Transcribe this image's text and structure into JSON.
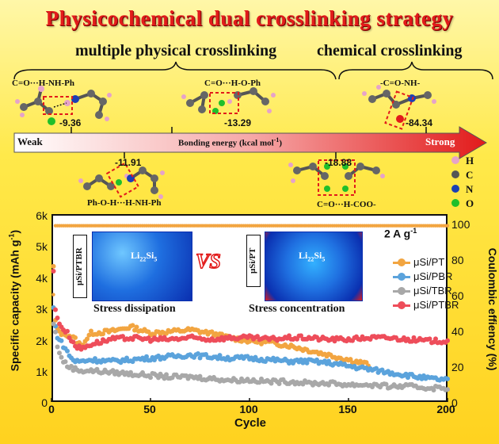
{
  "title": "Physicochemical dual crosslinking strategy",
  "subtitles": {
    "physical": "multiple physical crosslinking",
    "chemical": "chemical crosslinking"
  },
  "bond_labels": {
    "b1": "C=O···H-NH-Ph",
    "b2": "C=O···H-O-Ph",
    "b3": "-C=O-NH-",
    "b4": "Ph-O-H···H-NH-Ph",
    "b5": "C=O···H-COO-"
  },
  "energies": {
    "e1": "-9.36",
    "e2": "-13.29",
    "e3": "-84.34",
    "e4": "-11.91",
    "e5": "-18.88"
  },
  "energy_arrow": {
    "weak": "Weak",
    "label_main": "Bonding energy (kcal mol",
    "label_sup": "-1",
    "label_end": ")",
    "strong": "Strong"
  },
  "atoms": [
    {
      "symbol": "H",
      "color": "#e6a3c9"
    },
    {
      "symbol": "C",
      "color": "#555555"
    },
    {
      "symbol": "N",
      "color": "#1b3fb5"
    },
    {
      "symbol": "O",
      "color": "#1fbf2a"
    }
  ],
  "inset": {
    "left_label": "μSi/PTBR",
    "left_formula": "Li",
    "left_sub1": "22",
    "left_mid": "Si",
    "left_sub2": "5",
    "left_caption": "Stress dissipation",
    "vs": "VS",
    "right_label": "μSi/PT",
    "right_formula": "Li",
    "right_sub1": "22",
    "right_mid": "Si",
    "right_sub2": "5",
    "right_caption": "Stress concentration",
    "current": "2 A g",
    "current_sup": "-1"
  },
  "chart_data": {
    "type": "scatter",
    "xlabel": "Cycle",
    "ylabel": "Specific capacity (mAh g",
    "ylabel_sup": "-1",
    "ylabel_end": ")",
    "y2label": "Coulombic effiency (%)",
    "xlim": [
      0,
      200
    ],
    "ylim": [
      0,
      6000
    ],
    "y2lim": [
      0,
      105
    ],
    "xticks": [
      "0",
      "50",
      "100",
      "150",
      "200"
    ],
    "yticks": [
      "0",
      "1k",
      "2k",
      "3k",
      "4k",
      "5k",
      "6k"
    ],
    "y2ticks": [
      "0",
      "20",
      "40",
      "60",
      "80",
      "100"
    ],
    "series": [
      {
        "name": "μSi/PT",
        "color": "#f2a541",
        "x": [
          1,
          2,
          3,
          5,
          8,
          10,
          12,
          15,
          20,
          30,
          40,
          50,
          60,
          70,
          80,
          90,
          100,
          110,
          120,
          130,
          140,
          150,
          160
        ],
        "y": [
          4300,
          2600,
          2300,
          2200,
          2150,
          2100,
          2000,
          1800,
          2200,
          2250,
          2400,
          2200,
          2250,
          2300,
          2200,
          2050,
          1950,
          1900,
          1800,
          1650,
          1500,
          1350,
          1200
        ]
      },
      {
        "name": "μSi/PBR",
        "color": "#5ba3dc",
        "x": [
          1,
          2,
          3,
          5,
          8,
          10,
          12,
          15,
          20,
          30,
          40,
          50,
          60,
          70,
          80,
          90,
          100,
          110,
          120,
          130,
          140,
          150,
          160,
          170,
          180,
          190,
          200
        ],
        "y": [
          3000,
          2400,
          2100,
          1900,
          1600,
          1400,
          1300,
          1300,
          1350,
          1300,
          1350,
          1400,
          1450,
          1500,
          1450,
          1400,
          1400,
          1350,
          1300,
          1300,
          1250,
          1150,
          1050,
          950,
          850,
          750,
          700
        ]
      },
      {
        "name": "μSi/TBR",
        "color": "#a8a8a8",
        "x": [
          1,
          2,
          3,
          5,
          8,
          10,
          12,
          15,
          20,
          30,
          40,
          50,
          60,
          70,
          80,
          90,
          100,
          110,
          120,
          130,
          140,
          150,
          160,
          170,
          180,
          190,
          200
        ],
        "y": [
          2500,
          2200,
          1800,
          1400,
          1150,
          1100,
          1050,
          1000,
          1000,
          950,
          900,
          850,
          800,
          800,
          750,
          700,
          700,
          650,
          650,
          600,
          600,
          550,
          550,
          500,
          500,
          450,
          450
        ]
      },
      {
        "name": "μSi/PTBR",
        "color": "#ee4d5a",
        "x": [
          1,
          2,
          3,
          5,
          8,
          10,
          12,
          15,
          20,
          30,
          40,
          50,
          60,
          70,
          80,
          90,
          100,
          110,
          120,
          130,
          140,
          150,
          160,
          170,
          180,
          190,
          200
        ],
        "y": [
          4200,
          2900,
          2700,
          2400,
          2200,
          2000,
          1800,
          1700,
          1850,
          2000,
          2050,
          2000,
          2000,
          2050,
          2000,
          2050,
          2050,
          2000,
          2050,
          2050,
          2000,
          2000,
          2050,
          2050,
          2000,
          1950,
          1950
        ]
      }
    ],
    "coulombic": {
      "name": "Coulombic efficiency",
      "color": "#f2a541",
      "value": 98.5,
      "first": 60
    }
  }
}
